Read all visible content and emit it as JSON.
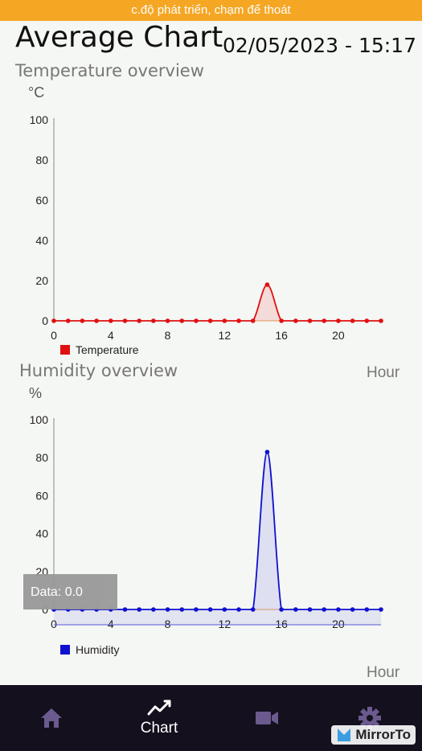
{
  "status_banner": "c.độ phát triển, chạm để thoát",
  "header": {
    "title": "Average Chart",
    "datetime": "02/05/2023 - 15:17"
  },
  "temperature": {
    "section_title": "Temperature overview",
    "unit": "°C",
    "x_unit": "Hour",
    "legend": "Temperature",
    "color": "#e01010"
  },
  "humidity": {
    "section_title": "Humidity overview",
    "unit": "%",
    "x_unit": "Hour",
    "legend": "Humidity",
    "color": "#1010d0"
  },
  "tooltip": {
    "text": "Data: 0.0"
  },
  "nav": {
    "items": [
      {
        "icon": "home-icon",
        "label": ""
      },
      {
        "icon": "chart-line-icon",
        "label": "Chart"
      },
      {
        "icon": "video-camera-icon",
        "label": ""
      },
      {
        "icon": "gear-icon",
        "label": ""
      }
    ]
  },
  "watermark": "MirrorTo",
  "chart_data": [
    {
      "type": "line",
      "x": [
        0,
        1,
        2,
        3,
        4,
        5,
        6,
        7,
        8,
        9,
        10,
        11,
        12,
        13,
        14,
        15,
        16,
        17,
        18,
        19,
        20,
        21,
        22,
        23
      ],
      "series": [
        {
          "name": "Temperature",
          "values": [
            0,
            0,
            0,
            0,
            0,
            0,
            0,
            0,
            0,
            0,
            0,
            0,
            0,
            0,
            0,
            18,
            0,
            0,
            0,
            0,
            0,
            0,
            0,
            0
          ]
        }
      ],
      "x_ticks": [
        0,
        4,
        8,
        12,
        16,
        20
      ],
      "y_ticks": [
        0,
        20,
        40,
        60,
        80,
        100
      ],
      "ylim": [
        0,
        100
      ],
      "xlim": [
        0,
        23
      ],
      "legend_position": "bottom-left"
    },
    {
      "type": "line",
      "x": [
        0,
        1,
        2,
        3,
        4,
        5,
        6,
        7,
        8,
        9,
        10,
        11,
        12,
        13,
        14,
        15,
        16,
        17,
        18,
        19,
        20,
        21,
        22,
        23
      ],
      "series": [
        {
          "name": "Humidity",
          "values": [
            0,
            0,
            0,
            0,
            0,
            0,
            0,
            0,
            0,
            0,
            0,
            0,
            0,
            0,
            0,
            83,
            0,
            0,
            0,
            0,
            0,
            0,
            0,
            0
          ]
        }
      ],
      "x_ticks": [
        0,
        4,
        8,
        12,
        16,
        20
      ],
      "y_ticks": [
        0,
        20,
        40,
        60,
        80,
        100
      ],
      "ylim": [
        0,
        100
      ],
      "xlim": [
        0,
        23
      ],
      "legend_position": "bottom-left"
    }
  ]
}
